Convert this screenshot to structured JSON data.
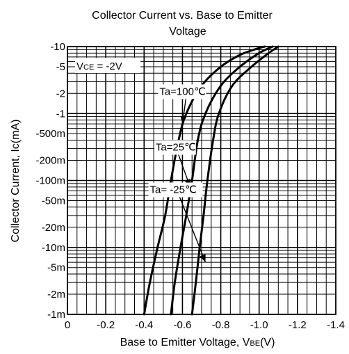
{
  "chart_data": {
    "type": "line",
    "title_lines": [
      "Collector Current vs. Base to Emitter",
      "Voltage"
    ],
    "xlabel": "Base to Emitter Voltage, V",
    "xlabel_sub": "BE",
    "xlabel_unit": "(V)",
    "ylabel": "Collector Current, Ic(mA)",
    "y_scale": "log",
    "xlim": [
      0,
      -1.4
    ],
    "ylim": [
      0.001,
      10
    ],
    "x_ticks": [
      {
        "value": 0,
        "label": "0"
      },
      {
        "value": -0.2,
        "label": "-0.2"
      },
      {
        "value": -0.4,
        "label": "-0.4"
      },
      {
        "value": -0.6,
        "label": "-0.6"
      },
      {
        "value": -0.8,
        "label": "-0.8"
      },
      {
        "value": -1.0,
        "label": "-1.0"
      },
      {
        "value": -1.2,
        "label": "-1.2"
      },
      {
        "value": -1.4,
        "label": "-1.4"
      }
    ],
    "y_ticks": [
      {
        "value": 10,
        "label": "-10"
      },
      {
        "value": 5,
        "label": "-5"
      },
      {
        "value": 2,
        "label": "-2"
      },
      {
        "value": 1,
        "label": "-1"
      },
      {
        "value": 0.5,
        "label": "-500m"
      },
      {
        "value": 0.2,
        "label": "-200m"
      },
      {
        "value": 0.1,
        "label": "-100m"
      },
      {
        "value": 0.05,
        "label": "-50m"
      },
      {
        "value": 0.02,
        "label": "-20m"
      },
      {
        "value": 0.01,
        "label": "-10m"
      },
      {
        "value": 0.005,
        "label": "-5m"
      },
      {
        "value": 0.002,
        "label": "-2m"
      },
      {
        "value": 0.001,
        "label": "-1m"
      }
    ],
    "grid": true,
    "condition_label": {
      "prefix": "V",
      "sub": "CE",
      "rest": " = -2V"
    },
    "series": [
      {
        "name": "Ta=100℃",
        "points": [
          [
            -0.4,
            0.001
          ],
          [
            -0.43,
            0.003
          ],
          [
            -0.47,
            0.01
          ],
          [
            -0.51,
            0.03
          ],
          [
            -0.54,
            0.1
          ],
          [
            -0.58,
            0.4
          ],
          [
            -0.62,
            1.0
          ],
          [
            -0.7,
            2.6
          ],
          [
            -0.8,
            5.0
          ],
          [
            -0.9,
            7.5
          ],
          [
            -1.0,
            9.5
          ],
          [
            -1.03,
            10
          ]
        ]
      },
      {
        "name": "Ta=25℃",
        "points": [
          [
            -0.54,
            0.001
          ],
          [
            -0.56,
            0.003
          ],
          [
            -0.59,
            0.01
          ],
          [
            -0.62,
            0.03
          ],
          [
            -0.65,
            0.1
          ],
          [
            -0.68,
            0.4
          ],
          [
            -0.72,
            1.0
          ],
          [
            -0.8,
            2.6
          ],
          [
            -0.9,
            5.0
          ],
          [
            -1.0,
            8.0
          ],
          [
            -1.07,
            10
          ]
        ]
      },
      {
        "name": "Ta= -25℃",
        "points": [
          [
            -0.65,
            0.001
          ],
          [
            -0.67,
            0.003
          ],
          [
            -0.69,
            0.01
          ],
          [
            -0.71,
            0.03
          ],
          [
            -0.73,
            0.1
          ],
          [
            -0.76,
            0.4
          ],
          [
            -0.79,
            1.0
          ],
          [
            -0.86,
            2.6
          ],
          [
            -0.96,
            5.0
          ],
          [
            -1.05,
            8.0
          ],
          [
            -1.1,
            10
          ]
        ]
      }
    ],
    "annotations": [
      {
        "text": "Ta=100℃",
        "x": -0.48,
        "y": 1.9,
        "arrow_to": [
          -0.6,
          0.7
        ]
      },
      {
        "text": "Ta=25℃",
        "x": -0.46,
        "y": 0.28,
        "arrow_to": [
          -0.64,
          0.08
        ]
      },
      {
        "text": "Ta= -25℃",
        "x": -0.43,
        "y": 0.065,
        "arrow_to": [
          -0.72,
          0.006
        ]
      }
    ]
  }
}
